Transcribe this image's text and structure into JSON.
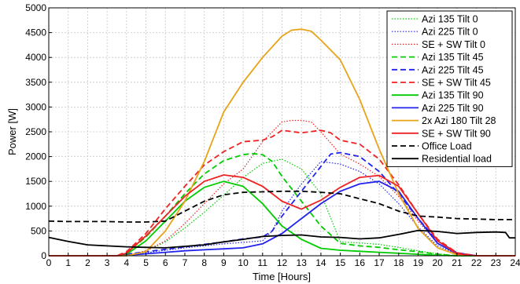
{
  "chart_data": {
    "type": "line",
    "xlabel": "Time [Hours]",
    "ylabel": "Power [W]",
    "xlim": [
      0,
      24
    ],
    "ylim": [
      0,
      5000
    ],
    "xticks": [
      0,
      1,
      2,
      3,
      4,
      5,
      6,
      7,
      8,
      9,
      10,
      11,
      12,
      13,
      14,
      15,
      16,
      17,
      18,
      19,
      20,
      21,
      22,
      23,
      24
    ],
    "yticks": [
      0,
      500,
      1000,
      1500,
      2000,
      2500,
      3000,
      3500,
      4000,
      4500,
      5000
    ],
    "grid": true,
    "legend_position": "top-right",
    "series": [
      {
        "name": "Azi 135 Tilt 0",
        "color": "#00cc00",
        "style": "dotted",
        "points": [
          [
            0,
            0
          ],
          [
            4,
            0
          ],
          [
            5,
            100
          ],
          [
            6,
            280
          ],
          [
            7,
            560
          ],
          [
            8,
            880
          ],
          [
            9,
            1220
          ],
          [
            10,
            1580
          ],
          [
            11,
            1860
          ],
          [
            12,
            1950
          ],
          [
            13,
            1750
          ],
          [
            14,
            1250
          ],
          [
            15,
            280
          ],
          [
            16,
            260
          ],
          [
            17,
            230
          ],
          [
            18,
            170
          ],
          [
            19,
            100
          ],
          [
            20,
            40
          ],
          [
            21,
            0
          ],
          [
            24,
            0
          ]
        ]
      },
      {
        "name": "Azi 225 Tilt 0",
        "color": "#2222ee",
        "style": "dotted",
        "points": [
          [
            0,
            0
          ],
          [
            3.5,
            0
          ],
          [
            4,
            30
          ],
          [
            5,
            60
          ],
          [
            6,
            110
          ],
          [
            7,
            160
          ],
          [
            8,
            200
          ],
          [
            9,
            240
          ],
          [
            10,
            270
          ],
          [
            11,
            300
          ],
          [
            11.5,
            500
          ],
          [
            12,
            900
          ],
          [
            13,
            1450
          ],
          [
            14,
            1900
          ],
          [
            15,
            1850
          ],
          [
            16,
            1700
          ],
          [
            17,
            1450
          ],
          [
            18,
            1050
          ],
          [
            19,
            580
          ],
          [
            20,
            200
          ],
          [
            21,
            40
          ],
          [
            22,
            0
          ],
          [
            24,
            0
          ]
        ]
      },
      {
        "name": "SE + SW Tilt 0",
        "color": "#ee2222",
        "style": "dotted",
        "points": [
          [
            0,
            0
          ],
          [
            4,
            0
          ],
          [
            5,
            100
          ],
          [
            6,
            300
          ],
          [
            7,
            650
          ],
          [
            8,
            1050
          ],
          [
            9,
            1450
          ],
          [
            10,
            1750
          ],
          [
            11,
            2300
          ],
          [
            12,
            2700
          ],
          [
            12.5,
            2730
          ],
          [
            13,
            2730
          ],
          [
            13.5,
            2700
          ],
          [
            14,
            2500
          ],
          [
            15,
            2050
          ],
          [
            16,
            1850
          ],
          [
            17,
            1600
          ],
          [
            18,
            1200
          ],
          [
            19,
            700
          ],
          [
            20,
            250
          ],
          [
            21,
            40
          ],
          [
            22,
            0
          ],
          [
            24,
            0
          ]
        ]
      },
      {
        "name": "Azi 135 Tilt 45",
        "color": "#00cc00",
        "style": "dashed",
        "points": [
          [
            0,
            0
          ],
          [
            3.5,
            0
          ],
          [
            4,
            50
          ],
          [
            5,
            380
          ],
          [
            6,
            800
          ],
          [
            7,
            1250
          ],
          [
            8,
            1650
          ],
          [
            9,
            1920
          ],
          [
            10,
            2040
          ],
          [
            10.5,
            2060
          ],
          [
            11,
            2040
          ],
          [
            11.5,
            1900
          ],
          [
            12,
            1600
          ],
          [
            13,
            1100
          ],
          [
            14,
            600
          ],
          [
            15,
            250
          ],
          [
            16,
            200
          ],
          [
            17,
            170
          ],
          [
            18,
            120
          ],
          [
            19,
            80
          ],
          [
            20,
            30
          ],
          [
            21,
            0
          ],
          [
            24,
            0
          ]
        ]
      },
      {
        "name": "Azi 225 Tilt 45",
        "color": "#2222ee",
        "style": "dashed",
        "points": [
          [
            0,
            0
          ],
          [
            3.5,
            0
          ],
          [
            4,
            30
          ],
          [
            5,
            80
          ],
          [
            6,
            130
          ],
          [
            7,
            180
          ],
          [
            8,
            230
          ],
          [
            9,
            280
          ],
          [
            10,
            340
          ],
          [
            11,
            380
          ],
          [
            11.5,
            500
          ],
          [
            12,
            800
          ],
          [
            13,
            1300
          ],
          [
            14,
            1800
          ],
          [
            14.5,
            2050
          ],
          [
            15,
            2080
          ],
          [
            16,
            2000
          ],
          [
            17,
            1700
          ],
          [
            18,
            1250
          ],
          [
            19,
            750
          ],
          [
            20,
            300
          ],
          [
            21,
            60
          ],
          [
            22,
            0
          ],
          [
            24,
            0
          ]
        ]
      },
      {
        "name": "SE + SW Tilt 45",
        "color": "#ee2222",
        "style": "dashed",
        "points": [
          [
            0,
            0
          ],
          [
            3.5,
            0
          ],
          [
            4,
            80
          ],
          [
            5,
            450
          ],
          [
            6,
            950
          ],
          [
            7,
            1400
          ],
          [
            8,
            1830
          ],
          [
            9,
            2100
          ],
          [
            10,
            2300
          ],
          [
            11,
            2330
          ],
          [
            11.5,
            2400
          ],
          [
            12,
            2530
          ],
          [
            13,
            2480
          ],
          [
            14,
            2530
          ],
          [
            14.5,
            2480
          ],
          [
            15,
            2330
          ],
          [
            16,
            2250
          ],
          [
            17,
            1950
          ],
          [
            18,
            1430
          ],
          [
            19,
            850
          ],
          [
            20,
            330
          ],
          [
            21,
            60
          ],
          [
            22,
            0
          ],
          [
            24,
            0
          ]
        ]
      },
      {
        "name": "Azi 135 Tilt 90",
        "color": "#00cc00",
        "style": "solid",
        "points": [
          [
            0,
            0
          ],
          [
            3.5,
            0
          ],
          [
            4,
            30
          ],
          [
            5,
            300
          ],
          [
            6,
            700
          ],
          [
            7,
            1100
          ],
          [
            8,
            1380
          ],
          [
            9,
            1500
          ],
          [
            10,
            1400
          ],
          [
            11,
            1050
          ],
          [
            12,
            600
          ],
          [
            13,
            330
          ],
          [
            14,
            150
          ],
          [
            15,
            110
          ],
          [
            16,
            90
          ],
          [
            17,
            70
          ],
          [
            18,
            50
          ],
          [
            19,
            30
          ],
          [
            20,
            10
          ],
          [
            21,
            0
          ],
          [
            24,
            0
          ]
        ]
      },
      {
        "name": "Azi 225 Tilt 90",
        "color": "#2222ee",
        "style": "solid",
        "points": [
          [
            0,
            0
          ],
          [
            3.5,
            0
          ],
          [
            4,
            10
          ],
          [
            5,
            40
          ],
          [
            6,
            70
          ],
          [
            7,
            100
          ],
          [
            8,
            120
          ],
          [
            9,
            140
          ],
          [
            10,
            160
          ],
          [
            11,
            240
          ],
          [
            12,
            450
          ],
          [
            13,
            750
          ],
          [
            14,
            1050
          ],
          [
            15,
            1300
          ],
          [
            16,
            1450
          ],
          [
            17,
            1500
          ],
          [
            18,
            1300
          ],
          [
            19,
            750
          ],
          [
            20,
            250
          ],
          [
            21,
            40
          ],
          [
            22,
            0
          ],
          [
            24,
            0
          ]
        ]
      },
      {
        "name": "2x Azi 180 Tilt 28",
        "color": "#e8a317",
        "style": "solid",
        "points": [
          [
            0,
            0
          ],
          [
            4,
            0
          ],
          [
            5,
            80
          ],
          [
            6,
            500
          ],
          [
            7,
            1100
          ],
          [
            8,
            1900
          ],
          [
            9,
            2900
          ],
          [
            10,
            3500
          ],
          [
            11,
            4000
          ],
          [
            12,
            4430
          ],
          [
            12.5,
            4550
          ],
          [
            13,
            4570
          ],
          [
            13.5,
            4530
          ],
          [
            14,
            4350
          ],
          [
            15,
            3950
          ],
          [
            16,
            3150
          ],
          [
            17,
            2150
          ],
          [
            18,
            1250
          ],
          [
            19,
            550
          ],
          [
            20,
            160
          ],
          [
            21,
            20
          ],
          [
            22,
            0
          ],
          [
            24,
            0
          ]
        ]
      },
      {
        "name": "SE + SW Tilt 90",
        "color": "#ee2222",
        "style": "solid",
        "points": [
          [
            0,
            0
          ],
          [
            3.5,
            0
          ],
          [
            4,
            50
          ],
          [
            5,
            400
          ],
          [
            6,
            800
          ],
          [
            7,
            1200
          ],
          [
            8,
            1500
          ],
          [
            9,
            1630
          ],
          [
            10,
            1580
          ],
          [
            11,
            1400
          ],
          [
            12,
            1100
          ],
          [
            13,
            940
          ],
          [
            14,
            1120
          ],
          [
            15,
            1380
          ],
          [
            16,
            1580
          ],
          [
            17,
            1620
          ],
          [
            18,
            1400
          ],
          [
            19,
            850
          ],
          [
            20,
            300
          ],
          [
            21,
            40
          ],
          [
            22,
            0
          ],
          [
            24,
            0
          ]
        ]
      },
      {
        "name": "Office Load",
        "color": "#000000",
        "style": "dashed",
        "points": [
          [
            0,
            700
          ],
          [
            1,
            690
          ],
          [
            2,
            690
          ],
          [
            3,
            690
          ],
          [
            4,
            680
          ],
          [
            5,
            680
          ],
          [
            6,
            700
          ],
          [
            7,
            900
          ],
          [
            8,
            1100
          ],
          [
            9,
            1230
          ],
          [
            10,
            1280
          ],
          [
            11,
            1290
          ],
          [
            12,
            1300
          ],
          [
            13,
            1300
          ],
          [
            14,
            1280
          ],
          [
            15,
            1250
          ],
          [
            16,
            1150
          ],
          [
            17,
            1050
          ],
          [
            18,
            900
          ],
          [
            19,
            800
          ],
          [
            20,
            780
          ],
          [
            21,
            750
          ],
          [
            22,
            740
          ],
          [
            23,
            730
          ],
          [
            24,
            730
          ]
        ]
      },
      {
        "name": "Residential load",
        "color": "#000000",
        "style": "solid",
        "points": [
          [
            0,
            370
          ],
          [
            1,
            290
          ],
          [
            2,
            220
          ],
          [
            3,
            200
          ],
          [
            4,
            180
          ],
          [
            5,
            170
          ],
          [
            6,
            160
          ],
          [
            7,
            190
          ],
          [
            8,
            220
          ],
          [
            9,
            280
          ],
          [
            10,
            330
          ],
          [
            11,
            390
          ],
          [
            12,
            410
          ],
          [
            13,
            420
          ],
          [
            14,
            380
          ],
          [
            15,
            370
          ],
          [
            16,
            340
          ],
          [
            17,
            360
          ],
          [
            18,
            430
          ],
          [
            19,
            510
          ],
          [
            20,
            490
          ],
          [
            21,
            450
          ],
          [
            22,
            470
          ],
          [
            23,
            480
          ],
          [
            23.5,
            470
          ],
          [
            23.7,
            360
          ],
          [
            24,
            360
          ]
        ]
      }
    ]
  }
}
